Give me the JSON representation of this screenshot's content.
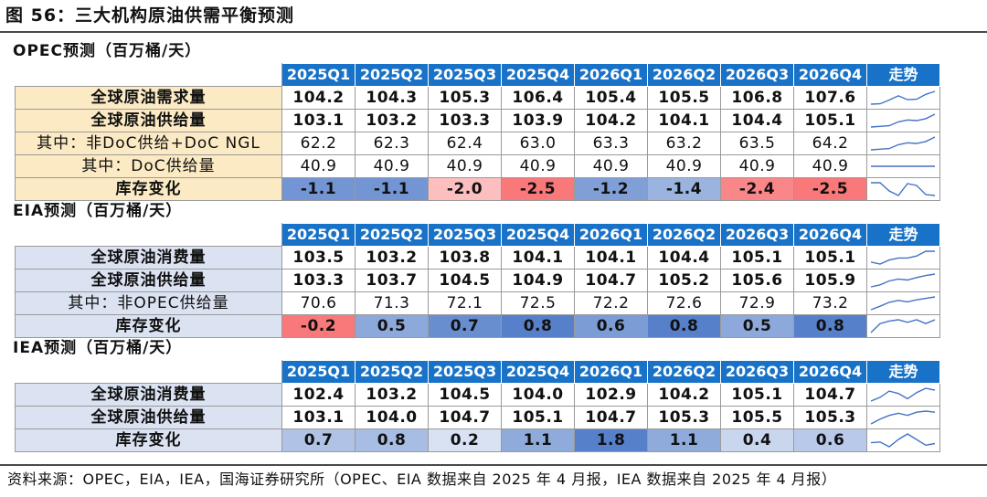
{
  "figure_title": "图 56：三大机构原油供需平衡预测",
  "source": "资料来源：OPEC，EIA，IEA，国海证券研究所（OPEC、EIA 数据来自 2025 年 4 月报，IEA 数据来自 2025 年 4 月报）",
  "trend_header": "走势",
  "colors": {
    "header": "#1872c7",
    "opec_label": "#fbeac3",
    "eia_iea_label": "#dbe2f1",
    "positive_scale": "#4472c4",
    "negative_scale": "#f8696b",
    "sparkline": "#4472c4"
  },
  "chart_data": [
    {
      "type": "table",
      "title": "OPEC预测（百万桶/天）",
      "columns": [
        "2025Q1",
        "2025Q2",
        "2025Q3",
        "2025Q4",
        "2026Q1",
        "2026Q2",
        "2026Q3",
        "2026Q4"
      ],
      "rows": [
        {
          "label": "全球原油需求量",
          "values": [
            "104.2",
            "104.3",
            "105.3",
            "106.4",
            "105.4",
            "105.5",
            "106.8",
            "107.6"
          ],
          "bold": true
        },
        {
          "label": "全球原油供给量",
          "values": [
            "103.1",
            "103.2",
            "103.3",
            "103.9",
            "104.2",
            "104.1",
            "104.4",
            "105.1"
          ],
          "bold": true
        },
        {
          "label": "其中：非DoC供给+DoC NGL",
          "values": [
            "62.2",
            "62.3",
            "62.4",
            "63.0",
            "63.3",
            "63.2",
            "63.5",
            "64.2"
          ],
          "bold": false
        },
        {
          "label": "其中：DoC供给量",
          "values": [
            "40.9",
            "40.9",
            "40.9",
            "40.9",
            "40.9",
            "40.9",
            "40.9",
            "40.9"
          ],
          "bold": false
        },
        {
          "label": "库存变化",
          "values": [
            "-1.1",
            "-1.1",
            "-2.0",
            "-2.5",
            "-1.2",
            "-1.4",
            "-2.4",
            "-2.5"
          ],
          "bold": true,
          "heat": true
        }
      ]
    },
    {
      "type": "table",
      "title": "EIA预测（百万桶/天）",
      "columns": [
        "2025Q1",
        "2025Q2",
        "2025Q3",
        "2025Q4",
        "2026Q1",
        "2026Q2",
        "2026Q3",
        "2026Q4"
      ],
      "rows": [
        {
          "label": "全球原油消费量",
          "values": [
            "103.5",
            "103.2",
            "103.8",
            "104.1",
            "104.1",
            "104.4",
            "105.1",
            "105.1"
          ],
          "bold": true
        },
        {
          "label": "全球原油供给量",
          "values": [
            "103.3",
            "103.7",
            "104.5",
            "104.9",
            "104.7",
            "105.2",
            "105.6",
            "105.9"
          ],
          "bold": true
        },
        {
          "label": "其中：非OPEC供给量",
          "values": [
            "70.6",
            "71.3",
            "72.1",
            "72.5",
            "72.2",
            "72.6",
            "72.9",
            "73.2"
          ],
          "bold": false
        },
        {
          "label": "库存变化",
          "values": [
            "-0.2",
            "0.5",
            "0.7",
            "0.8",
            "0.6",
            "0.8",
            "0.5",
            "0.8"
          ],
          "bold": true,
          "heat": true
        }
      ]
    },
    {
      "type": "table",
      "title": "IEA预测（百万桶/天）",
      "columns": [
        "2025Q1",
        "2025Q2",
        "2025Q3",
        "2025Q4",
        "2026Q1",
        "2026Q2",
        "2026Q3",
        "2026Q4"
      ],
      "rows": [
        {
          "label": "全球原油消费量",
          "values": [
            "102.4",
            "103.2",
            "104.5",
            "104.0",
            "102.9",
            "104.2",
            "105.1",
            "104.7"
          ],
          "bold": true
        },
        {
          "label": "全球原油供给量",
          "values": [
            "103.1",
            "104.0",
            "104.7",
            "105.1",
            "104.7",
            "105.3",
            "105.5",
            "105.3"
          ],
          "bold": true
        },
        {
          "label": "库存变化",
          "values": [
            "0.7",
            "0.8",
            "0.2",
            "1.1",
            "1.8",
            "1.1",
            "0.4",
            "0.6"
          ],
          "bold": true,
          "heat": true
        }
      ]
    }
  ]
}
